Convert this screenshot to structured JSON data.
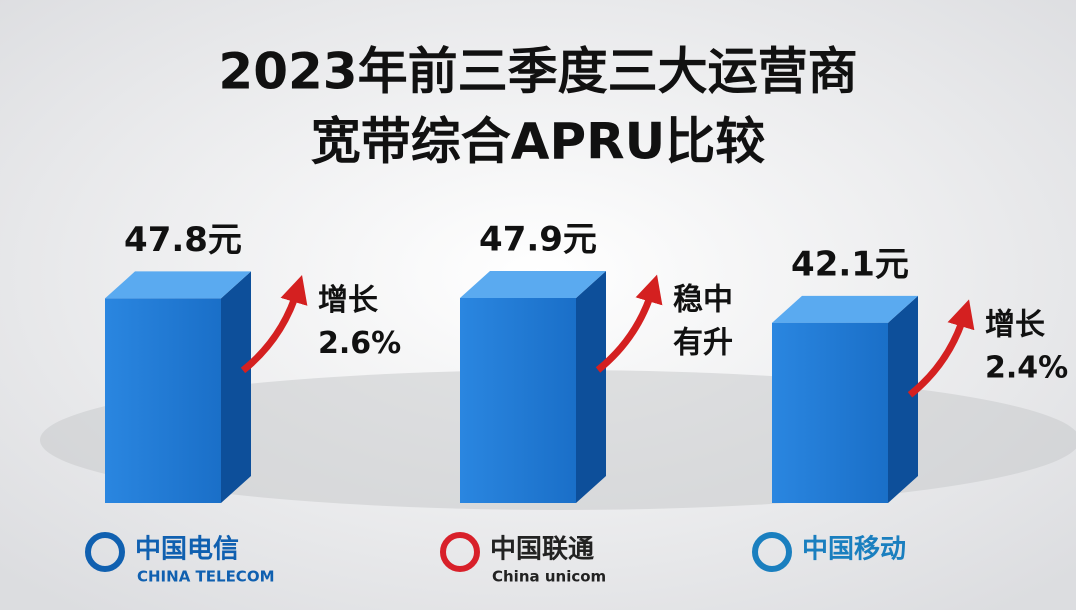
{
  "chart_data": {
    "type": "bar3d",
    "title": [
      "2023年前三季度三大运营商",
      "宽带综合APRU比较"
    ],
    "categories": [
      "中国电信",
      "中国联通",
      "中国移动"
    ],
    "category_sublabels": [
      "CHINA TELECOM",
      "China unicom",
      null
    ],
    "values": [
      47.8,
      47.9,
      42.1
    ],
    "value_labels": [
      "47.8元",
      "47.9元",
      "42.1元"
    ],
    "annotations": [
      [
        "增长",
        "2.6%"
      ],
      [
        "稳中",
        "有升"
      ],
      [
        "增长",
        "2.4%"
      ]
    ],
    "color": "#1f78d1",
    "arrow_color": "#d42020",
    "logo_colors": [
      "#1060b0",
      "#d8202a",
      "#1a7fbf"
    ]
  }
}
